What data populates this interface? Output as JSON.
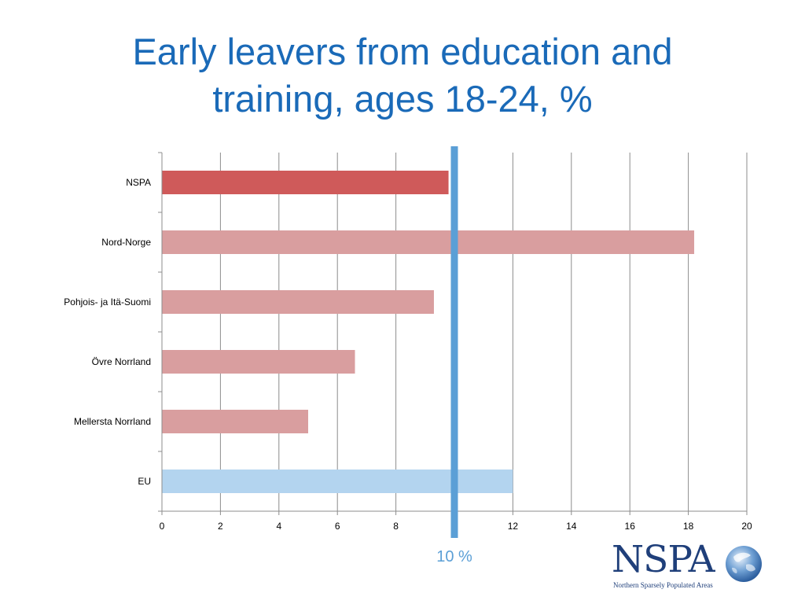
{
  "chart_data": {
    "type": "bar",
    "orientation": "horizontal",
    "title_lines": [
      "Early leavers from education and",
      "training, ages 18-24, %"
    ],
    "categories": [
      "NSPA",
      "Nord-Norge",
      "Pohjois- ja Itä-Suomi",
      "Övre Norrland",
      "Mellersta Norrland",
      "EU"
    ],
    "values": [
      9.8,
      18.2,
      9.3,
      6.6,
      5.0,
      12.0
    ],
    "bar_colors": [
      "#cf5a5a",
      "#d99e9f",
      "#d99e9f",
      "#d99e9f",
      "#d99e9f",
      "#b3d4ef"
    ],
    "xlim": [
      0,
      20
    ],
    "xticks": [
      0,
      2,
      4,
      6,
      8,
      12,
      14,
      16,
      18,
      20
    ],
    "xtick_labels": [
      "0",
      "2",
      "4",
      "6",
      "8",
      "12",
      "14",
      "16",
      "18",
      "20"
    ],
    "grid": true,
    "reference_line": {
      "value": 10,
      "label": "10 %",
      "color": "#5b9fd6"
    },
    "xlabel": "",
    "ylabel": ""
  },
  "logo": {
    "wordmark": "NSPA",
    "tagline": "Northern Sparsely Populated Areas"
  },
  "colors": {
    "title": "#1a6ab8",
    "axis": "#8c8c8c",
    "grid": "#8c8c8c",
    "logo": "#1f3f7a"
  }
}
